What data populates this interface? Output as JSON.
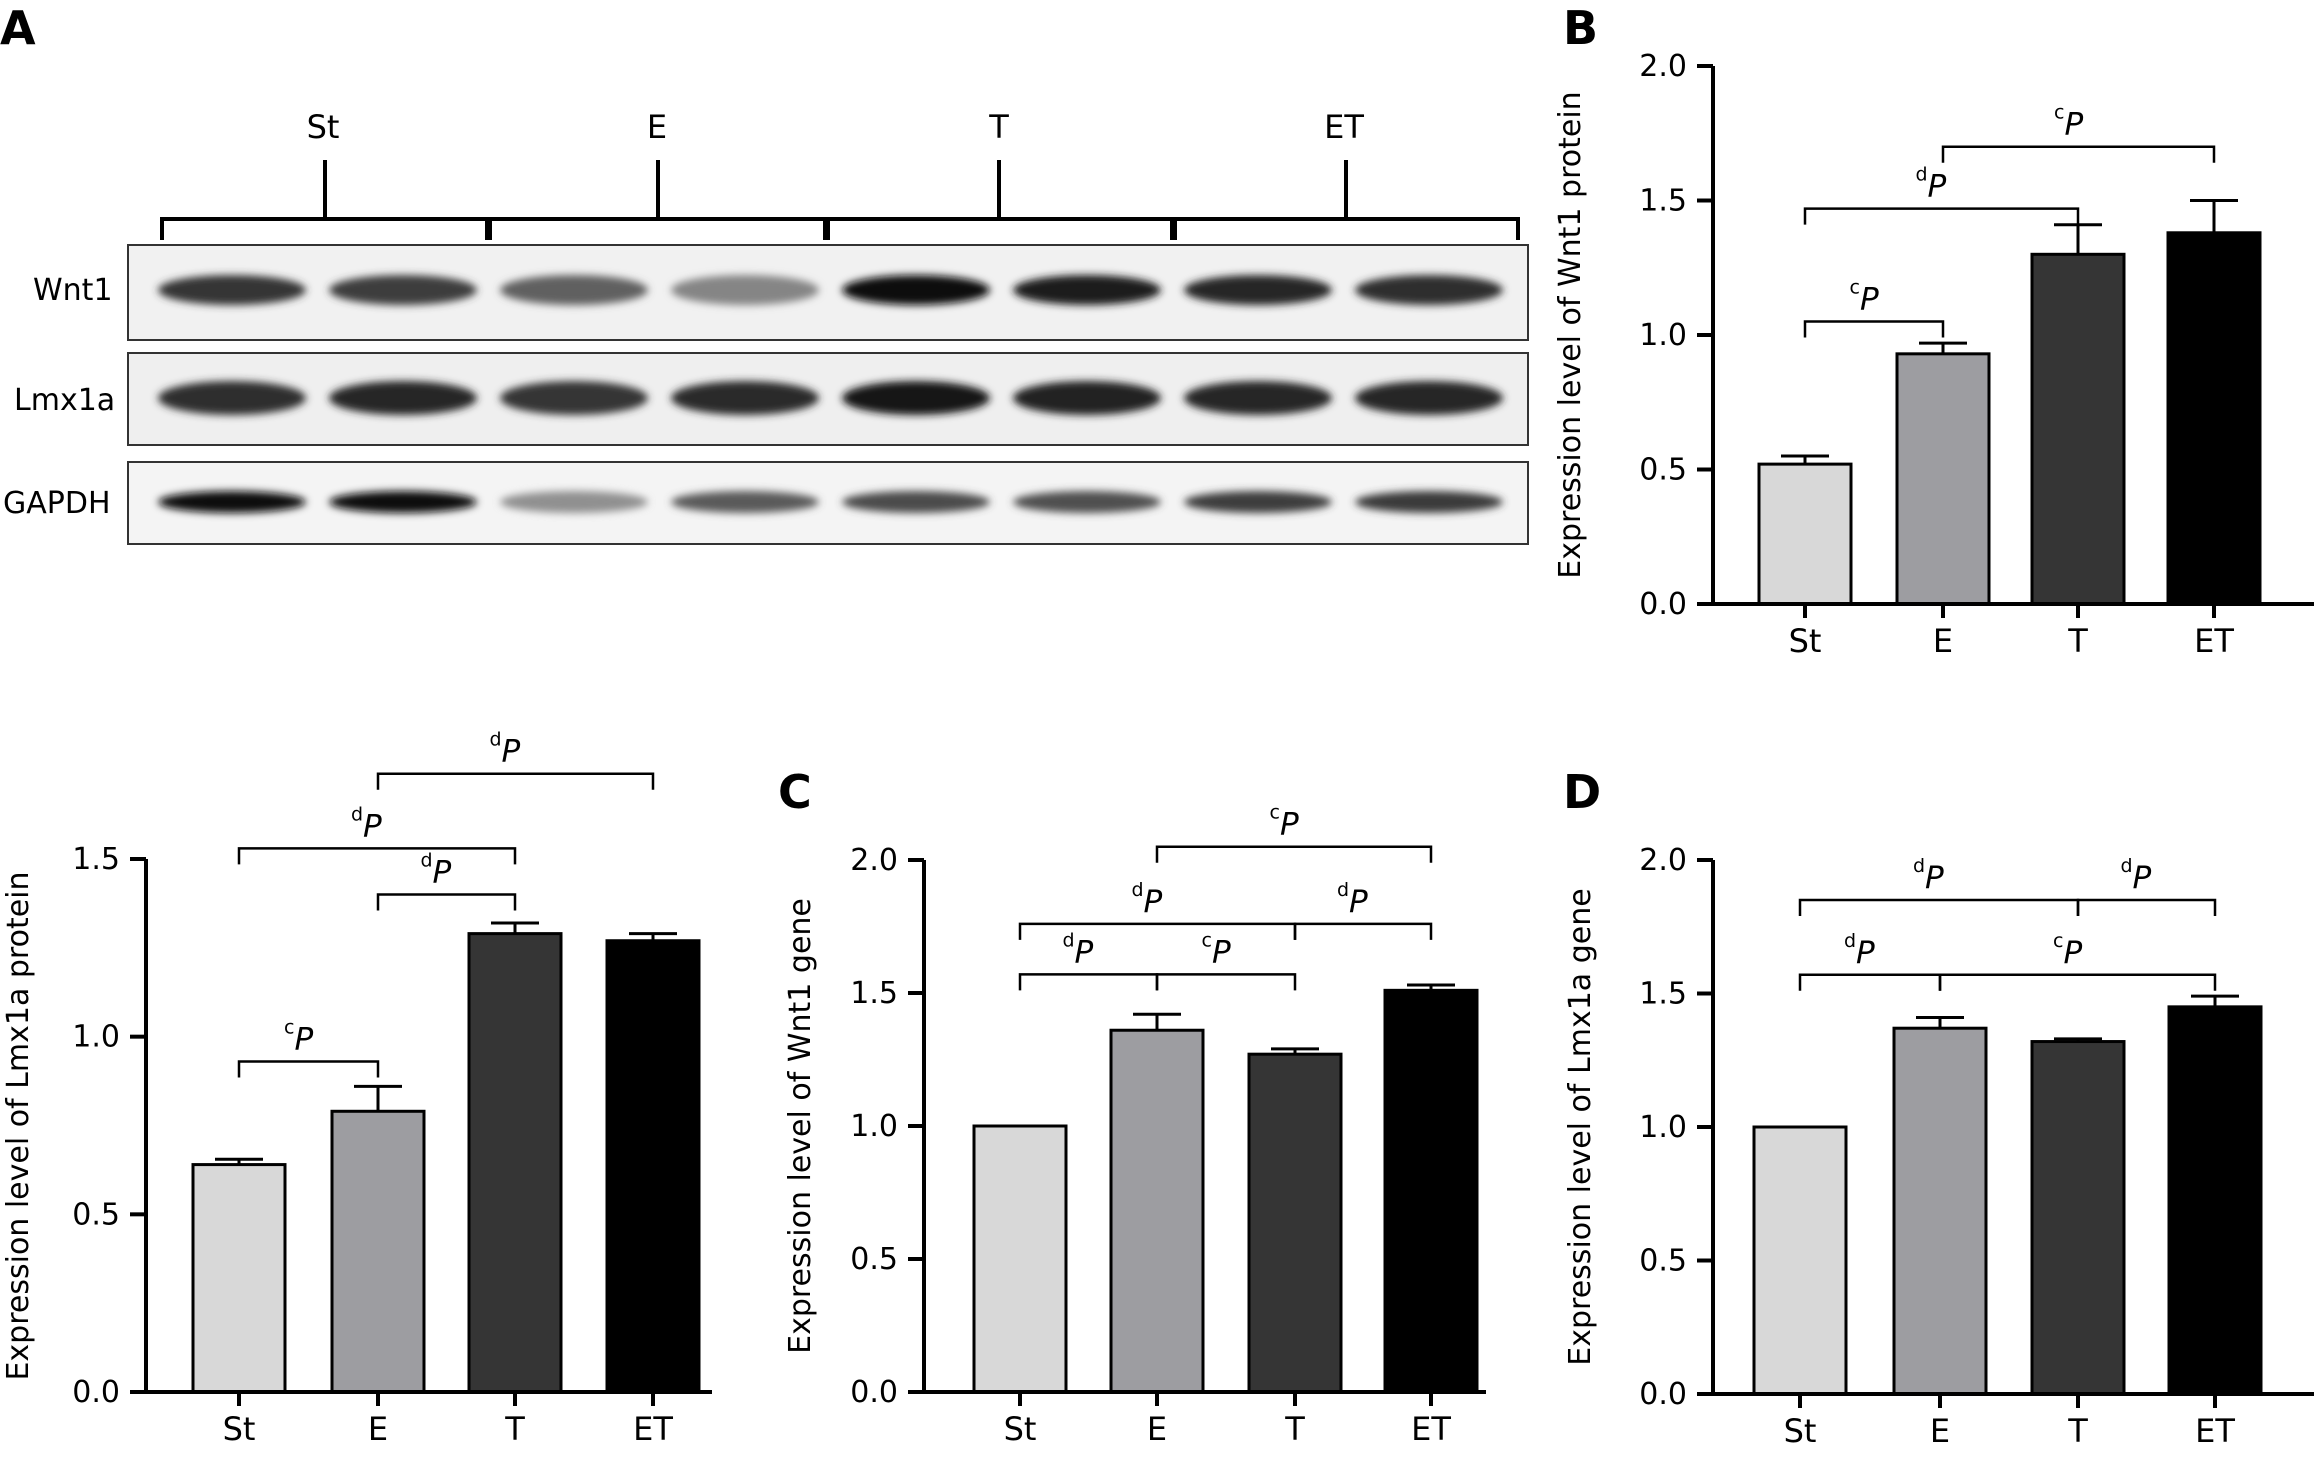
{
  "panel_labels": [
    "A",
    "B",
    "C",
    "D"
  ],
  "blot": {
    "groups": [
      "St",
      "E",
      "T",
      "ET"
    ],
    "rows": [
      {
        "label": "Wnt1",
        "bands": [
          0.82,
          0.78,
          0.62,
          0.45,
          1.0,
          0.95,
          0.9,
          0.85
        ]
      },
      {
        "label": "Lmx1a",
        "bands": [
          0.85,
          0.9,
          0.82,
          0.88,
          0.96,
          0.92,
          0.9,
          0.9
        ]
      },
      {
        "label": "GAPDH",
        "bands": [
          1.0,
          1.0,
          0.4,
          0.65,
          0.72,
          0.7,
          0.78,
          0.8
        ]
      }
    ]
  },
  "colors": {
    "St": "#d8d8d8",
    "E": "#9d9da1",
    "T": "#353535",
    "ET": "#000000"
  },
  "chart_data": [
    {
      "panel": "B",
      "type": "bar",
      "categories": [
        "St",
        "E",
        "T",
        "ET"
      ],
      "values": [
        0.52,
        0.93,
        1.3,
        1.38
      ],
      "errors": [
        0.03,
        0.04,
        0.11,
        0.12
      ],
      "ylabel": "Expression level of Wnt1 protein",
      "ylim": [
        0,
        2.0
      ],
      "yticks": [
        "0.0",
        "0.5",
        "1.0",
        "1.5",
        "2.0"
      ],
      "significance": [
        {
          "from": "St",
          "to": "E",
          "y": 1.05,
          "sup": "c",
          "label": "P"
        },
        {
          "from": "St",
          "to": "T",
          "y": 1.47,
          "sup": "d",
          "label": "P"
        },
        {
          "from": "E",
          "to": "ET",
          "y": 1.7,
          "sup": "c",
          "label": "P"
        }
      ]
    },
    {
      "panel": "",
      "type": "bar",
      "categories": [
        "St",
        "E",
        "T",
        "ET"
      ],
      "values": [
        0.64,
        0.79,
        1.29,
        1.27
      ],
      "errors": [
        0.015,
        0.07,
        0.03,
        0.02
      ],
      "ylabel": "Expression level of Lmx1a protein",
      "ylim": [
        0,
        1.5
      ],
      "yticks": [
        "0.0",
        "0.5",
        "1.0",
        "1.5"
      ],
      "significance": [
        {
          "from": "St",
          "to": "E",
          "y": 0.93,
          "sup": "c",
          "label": "P"
        },
        {
          "from": "E",
          "to": "T",
          "y": 1.4,
          "sup": "d",
          "label": "P"
        },
        {
          "from": "St",
          "to": "T",
          "y": 1.53,
          "sup": "d",
          "label": "P"
        },
        {
          "from": "E",
          "to": "ET",
          "y": 1.74,
          "sup": "d",
          "label": "P"
        }
      ]
    },
    {
      "panel": "C",
      "type": "bar",
      "categories": [
        "St",
        "E",
        "T",
        "ET"
      ],
      "values": [
        1.0,
        1.36,
        1.27,
        1.51
      ],
      "errors": [
        0.0,
        0.06,
        0.02,
        0.02
      ],
      "ylabel": "Expression level of Wnt1 gene",
      "ylim": [
        0,
        2.0
      ],
      "yticks": [
        "0.0",
        "0.5",
        "1.0",
        "1.5",
        "2.0"
      ],
      "significance": [
        {
          "from": "St",
          "to": "E",
          "y": 1.57,
          "sup": "d",
          "label": "P"
        },
        {
          "from": "E",
          "to": "T",
          "y": 1.57,
          "sup": "c",
          "label": "P"
        },
        {
          "from": "St",
          "to": "T",
          "y": 1.76,
          "sup": "d",
          "label": "P"
        },
        {
          "from": "T",
          "to": "ET",
          "y": 1.76,
          "sup": "d",
          "label": "P"
        },
        {
          "from": "E",
          "to": "ET",
          "y": 2.05,
          "sup": "c",
          "label": "P"
        }
      ]
    },
    {
      "panel": "D",
      "type": "bar",
      "categories": [
        "St",
        "E",
        "T",
        "ET"
      ],
      "values": [
        1.0,
        1.37,
        1.32,
        1.45
      ],
      "errors": [
        0.0,
        0.04,
        0.01,
        0.04
      ],
      "ylabel": "Expression level of Lmx1a gene",
      "ylim": [
        0,
        2.0
      ],
      "yticks": [
        "0.0",
        "0.5",
        "1.0",
        "1.5",
        "2.0"
      ],
      "significance": [
        {
          "from": "St",
          "to": "E",
          "y": 1.57,
          "sup": "d",
          "label": "P"
        },
        {
          "from": "E",
          "to": "ET",
          "y": 1.57,
          "sup": "c",
          "label": "P"
        },
        {
          "from": "St",
          "to": "T",
          "y": 1.85,
          "sup": "d",
          "label": "P"
        },
        {
          "from": "T",
          "to": "ET",
          "y": 1.85,
          "sup": "d",
          "label": "P"
        }
      ]
    }
  ]
}
